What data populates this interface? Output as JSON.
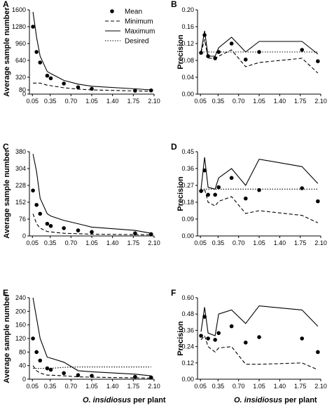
{
  "x_label": {
    "italic": "O. insidiosus",
    "rest": " per plant"
  },
  "chart_data": [
    {
      "panel": "A",
      "type": "line",
      "ylabel": "Average sample number",
      "ylim": [
        0,
        1600
      ],
      "yticks": [
        0,
        80,
        320,
        640,
        960,
        1280,
        1600
      ],
      "xlim": [
        0,
        2.1
      ],
      "xticks": [
        0.05,
        0.35,
        0.7,
        1.05,
        1.4,
        1.75,
        2.1
      ],
      "legend": {
        "placement": "top-right",
        "entries": [
          "Mean",
          "Minimum",
          "Maximum",
          "Desired"
        ]
      },
      "series": [
        {
          "name": "Mean",
          "style": "points",
          "x": [
            0.06,
            0.12,
            0.18,
            0.3,
            0.36,
            0.58,
            0.82,
            1.05,
            1.78,
            2.05
          ],
          "y": [
            1280,
            800,
            600,
            350,
            300,
            200,
            130,
            100,
            65,
            70
          ]
        },
        {
          "name": "Minimum",
          "style": "dashed",
          "x": [
            0.06,
            0.12,
            0.18,
            0.3,
            0.36,
            0.58,
            0.82,
            1.05,
            1.78,
            2.05
          ],
          "y": [
            210,
            210,
            210,
            170,
            160,
            120,
            95,
            80,
            60,
            55
          ]
        },
        {
          "name": "Maximum",
          "style": "solid",
          "x": [
            0.06,
            0.12,
            0.18,
            0.3,
            0.36,
            0.58,
            0.82,
            1.05,
            1.78,
            2.05
          ],
          "y": [
            1560,
            1080,
            720,
            430,
            390,
            260,
            190,
            150,
            100,
            80
          ]
        }
      ]
    },
    {
      "panel": "B",
      "type": "line",
      "ylabel": "Precision",
      "ylim": [
        0,
        0.2
      ],
      "yticks": [
        0.0,
        0.04,
        0.08,
        0.12,
        0.16,
        0.2
      ],
      "xlim": [
        0,
        2.1
      ],
      "xticks": [
        0.05,
        0.35,
        0.7,
        1.05,
        1.4,
        1.75,
        2.1
      ],
      "series": [
        {
          "name": "Mean",
          "style": "points",
          "x": [
            0.06,
            0.12,
            0.18,
            0.3,
            0.36,
            0.58,
            0.82,
            1.05,
            1.78,
            2.05
          ],
          "y": [
            0.098,
            0.14,
            0.09,
            0.085,
            0.1,
            0.12,
            0.082,
            0.1,
            0.105,
            0.078
          ]
        },
        {
          "name": "Minimum",
          "style": "dashed",
          "x": [
            0.06,
            0.12,
            0.18,
            0.3,
            0.36,
            0.58,
            0.82,
            1.05,
            1.78,
            2.05
          ],
          "y": [
            0.098,
            0.13,
            0.085,
            0.085,
            0.09,
            0.105,
            0.065,
            0.075,
            0.085,
            0.05
          ]
        },
        {
          "name": "Maximum",
          "style": "solid",
          "x": [
            0.06,
            0.12,
            0.18,
            0.3,
            0.36,
            0.58,
            0.82,
            1.05,
            1.78,
            2.05
          ],
          "y": [
            0.1,
            0.15,
            0.09,
            0.09,
            0.11,
            0.135,
            0.1,
            0.125,
            0.125,
            0.095
          ]
        },
        {
          "name": "Desired",
          "style": "dotted",
          "x": [
            0.06,
            2.05
          ],
          "y": [
            0.1,
            0.1
          ]
        }
      ]
    },
    {
      "panel": "C",
      "type": "line",
      "ylabel": "Average sample number",
      "ylim": [
        0,
        380
      ],
      "yticks": [
        0,
        76,
        152,
        228,
        304,
        380
      ],
      "xlim": [
        0,
        2.1
      ],
      "xticks": [
        0.05,
        0.35,
        0.7,
        1.05,
        1.4,
        1.75,
        2.1
      ],
      "series": [
        {
          "name": "Mean",
          "style": "points",
          "x": [
            0.06,
            0.12,
            0.18,
            0.3,
            0.36,
            0.58,
            0.82,
            1.05,
            1.78,
            2.05
          ],
          "y": [
            205,
            140,
            100,
            55,
            45,
            35,
            25,
            18,
            12,
            8
          ]
        },
        {
          "name": "Minimum",
          "style": "dashed",
          "x": [
            0.06,
            0.12,
            0.18,
            0.3,
            0.36,
            0.58,
            0.82,
            1.05,
            1.78,
            2.05
          ],
          "y": [
            100,
            55,
            35,
            20,
            18,
            12,
            10,
            8,
            6,
            5
          ]
        },
        {
          "name": "Maximum",
          "style": "solid",
          "x": [
            0.06,
            0.12,
            0.18,
            0.3,
            0.36,
            0.58,
            0.82,
            1.05,
            1.78,
            2.05
          ],
          "y": [
            370,
            290,
            170,
            100,
            90,
            70,
            55,
            40,
            25,
            12
          ]
        }
      ]
    },
    {
      "panel": "D",
      "type": "line",
      "ylabel": "Precision",
      "ylim": [
        0,
        0.45
      ],
      "yticks": [
        0.0,
        0.09,
        0.18,
        0.27,
        0.36,
        0.45
      ],
      "xlim": [
        0,
        2.1
      ],
      "xticks": [
        0.05,
        0.35,
        0.7,
        1.05,
        1.4,
        1.75,
        2.1
      ],
      "series": [
        {
          "name": "Mean",
          "style": "points",
          "x": [
            0.06,
            0.12,
            0.18,
            0.3,
            0.36,
            0.58,
            0.82,
            1.05,
            1.78,
            2.05
          ],
          "y": [
            0.24,
            0.35,
            0.22,
            0.22,
            0.26,
            0.31,
            0.2,
            0.245,
            0.255,
            0.185
          ]
        },
        {
          "name": "Minimum",
          "style": "dashed",
          "x": [
            0.06,
            0.12,
            0.18,
            0.3,
            0.36,
            0.58,
            0.82,
            1.05,
            1.78,
            2.05
          ],
          "y": [
            0.23,
            0.25,
            0.18,
            0.16,
            0.185,
            0.21,
            0.12,
            0.135,
            0.11,
            0.07
          ]
        },
        {
          "name": "Maximum",
          "style": "solid",
          "x": [
            0.06,
            0.12,
            0.18,
            0.3,
            0.36,
            0.58,
            0.82,
            1.05,
            1.78,
            2.05
          ],
          "y": [
            0.25,
            0.42,
            0.26,
            0.25,
            0.31,
            0.36,
            0.27,
            0.41,
            0.37,
            0.28
          ]
        },
        {
          "name": "Desired",
          "style": "dotted",
          "x": [
            0.06,
            2.05
          ],
          "y": [
            0.25,
            0.25
          ]
        }
      ]
    },
    {
      "panel": "E",
      "type": "line",
      "ylabel": "Average sample number",
      "ylim": [
        0,
        240
      ],
      "yticks": [
        0,
        40,
        80,
        120,
        160,
        200,
        240
      ],
      "xlim": [
        0,
        2.1
      ],
      "xticks": [
        0.05,
        0.35,
        0.7,
        1.05,
        1.4,
        1.75,
        2.1
      ],
      "series": [
        {
          "name": "Mean",
          "style": "points",
          "x": [
            0.06,
            0.12,
            0.18,
            0.3,
            0.36,
            0.58,
            0.82,
            1.05,
            1.78,
            2.05
          ],
          "y": [
            120,
            80,
            55,
            32,
            28,
            18,
            12,
            10,
            7,
            5
          ]
        },
        {
          "name": "Minimum",
          "style": "dashed",
          "x": [
            0.06,
            0.12,
            0.18,
            0.3,
            0.36,
            0.58,
            0.82,
            1.05,
            1.78,
            2.05
          ],
          "y": [
            40,
            25,
            18,
            12,
            12,
            10,
            7,
            6,
            4,
            3
          ]
        },
        {
          "name": "Maximum",
          "style": "solid",
          "x": [
            0.06,
            0.12,
            0.18,
            0.3,
            0.36,
            0.58,
            0.82,
            1.05,
            1.78,
            2.05
          ],
          "y": [
            240,
            180,
            120,
            65,
            62,
            50,
            25,
            22,
            15,
            10
          ]
        },
        {
          "name": "Desired",
          "style": "dotted",
          "x": [
            0.06,
            0.12,
            0.18,
            0.3,
            0.36,
            0.58,
            0.82,
            1.05,
            1.78,
            2.05
          ],
          "y": [
            32,
            32,
            32,
            32,
            32,
            35,
            36,
            36,
            36,
            36
          ]
        }
      ]
    },
    {
      "panel": "F",
      "type": "line",
      "ylabel": "Precision",
      "ylim": [
        0,
        0.6
      ],
      "yticks": [
        0.0,
        0.12,
        0.24,
        0.36,
        0.48,
        0.6
      ],
      "xlim": [
        0,
        2.1
      ],
      "xticks": [
        0.05,
        0.35,
        0.7,
        1.05,
        1.4,
        1.75,
        2.1
      ],
      "series": [
        {
          "name": "Mean",
          "style": "points",
          "x": [
            0.06,
            0.12,
            0.18,
            0.3,
            0.36,
            0.58,
            0.82,
            1.05,
            1.78,
            2.05
          ],
          "y": [
            0.32,
            0.46,
            0.3,
            0.29,
            0.34,
            0.39,
            0.27,
            0.31,
            0.3,
            0.2
          ]
        },
        {
          "name": "Minimum",
          "style": "dashed",
          "x": [
            0.06,
            0.12,
            0.18,
            0.3,
            0.36,
            0.58,
            0.82,
            1.05,
            1.78,
            2.05
          ],
          "y": [
            0.29,
            0.32,
            0.24,
            0.2,
            0.23,
            0.24,
            0.11,
            0.11,
            0.12,
            0.07
          ]
        },
        {
          "name": "Maximum",
          "style": "solid",
          "x": [
            0.06,
            0.12,
            0.18,
            0.3,
            0.36,
            0.58,
            0.82,
            1.05,
            1.78,
            2.05
          ],
          "y": [
            0.35,
            0.53,
            0.34,
            0.32,
            0.48,
            0.51,
            0.41,
            0.54,
            0.51,
            0.39
          ]
        }
      ]
    }
  ]
}
